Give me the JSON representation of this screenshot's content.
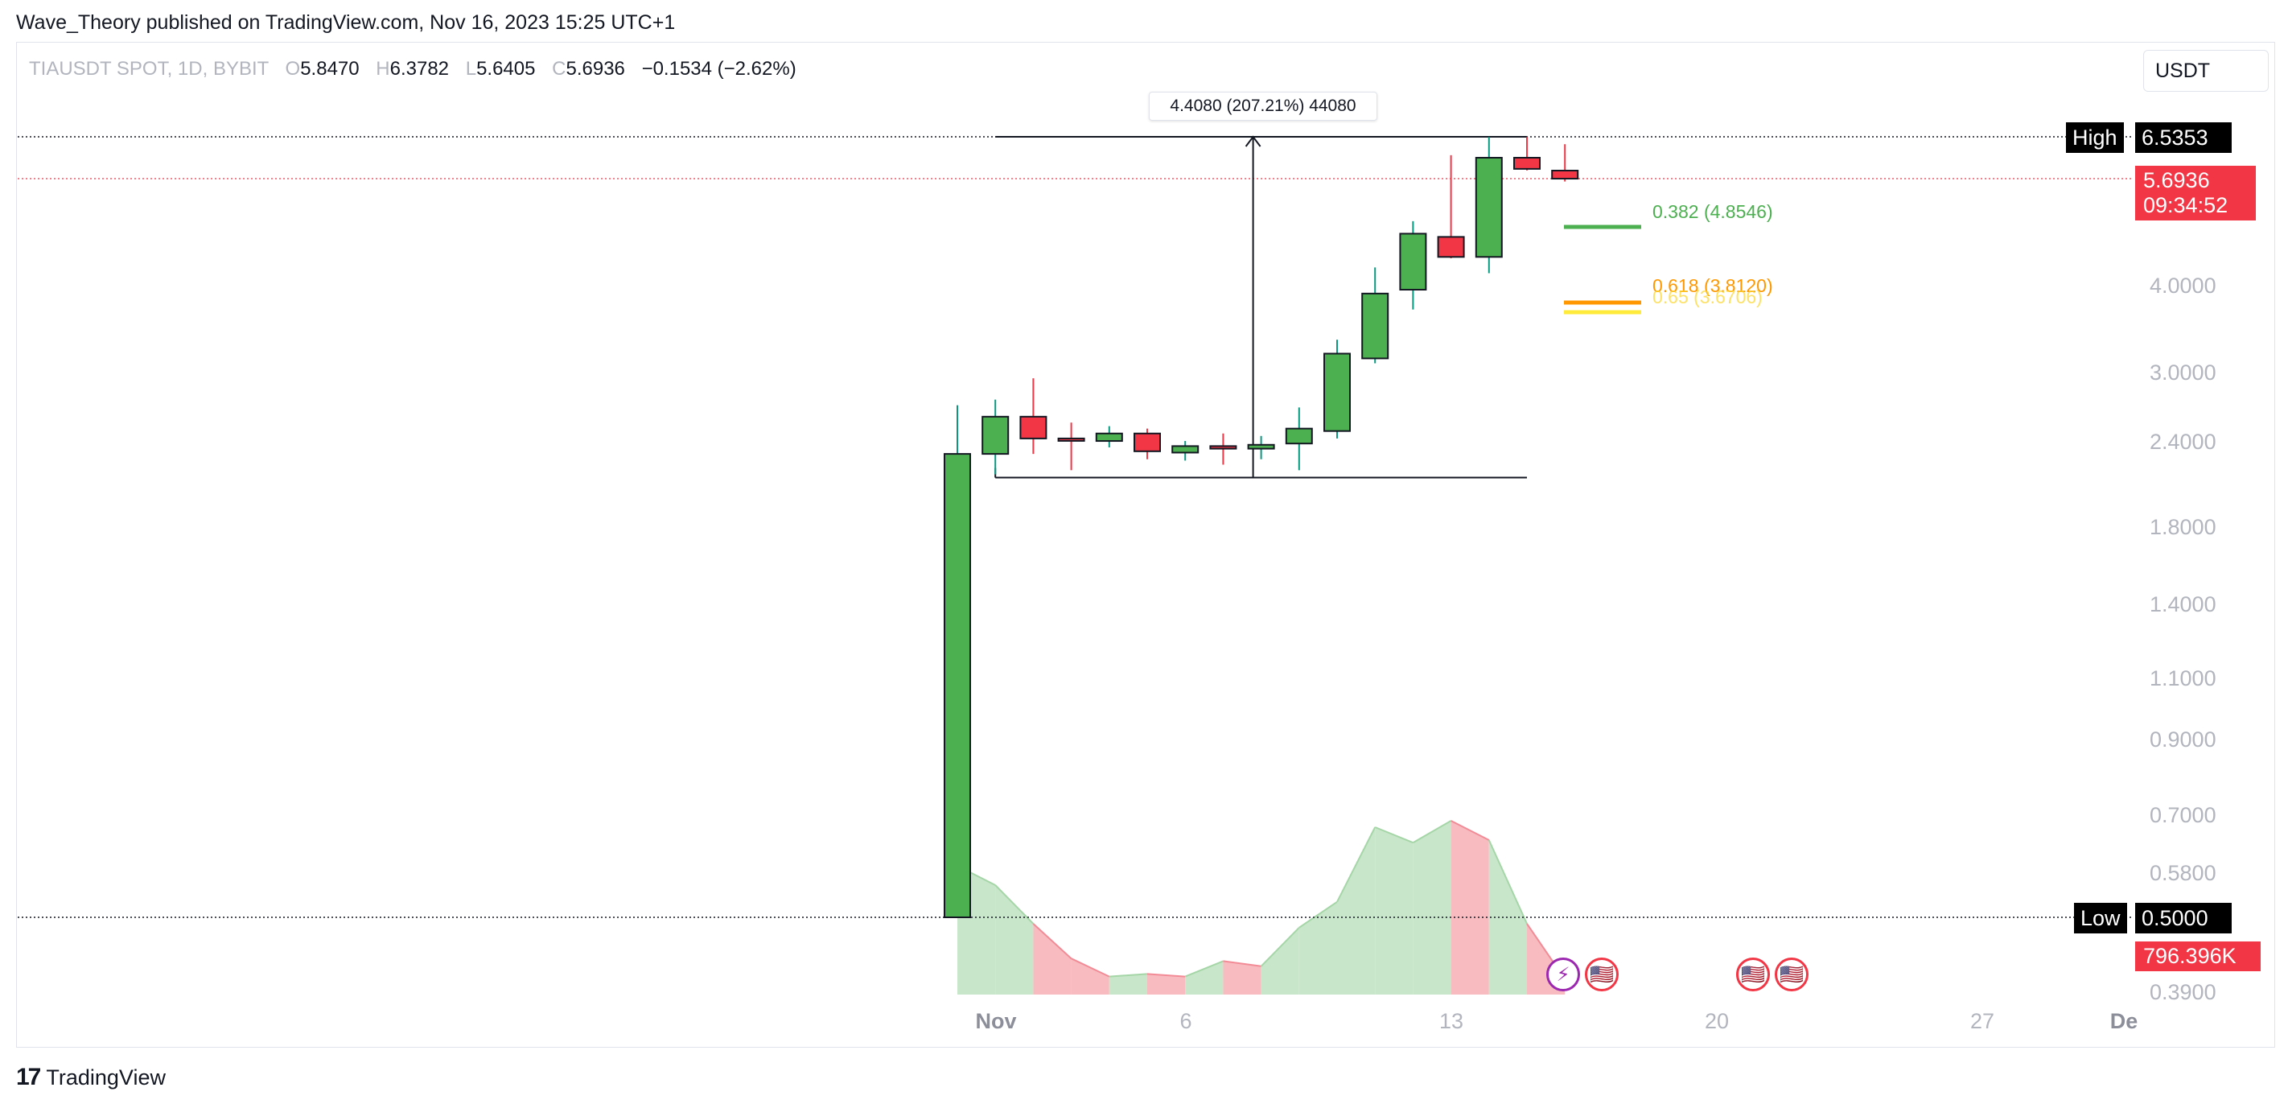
{
  "header": {
    "published_line": "Wave_Theory published on TradingView.com, Nov 16, 2023 15:25 UTC+1"
  },
  "legend": {
    "symbol": "TIAUSDT SPOT, 1D, BYBIT",
    "open_label": "O",
    "open": "5.8470",
    "high_label": "H",
    "high": "6.3782",
    "low_label": "L",
    "low": "5.6405",
    "close_label": "C",
    "close": "5.6936",
    "change": "−0.1534 (−2.62%)"
  },
  "currency": "USDT",
  "measure_tool": {
    "label": "4.4080 (207.21%) 44080"
  },
  "fib_levels": [
    {
      "label": "0.382 (4.8546)",
      "color": "#4caf50"
    },
    {
      "label": "0.618 (3.8120)",
      "color": "#ff9800"
    },
    {
      "label": "0.65 (3.6706)",
      "color": "#ffeb3b"
    }
  ],
  "high_marker": {
    "label": "High",
    "value": "6.5353"
  },
  "low_marker": {
    "label": "Low",
    "value": "0.5000"
  },
  "last_price": {
    "value": "5.6936",
    "countdown": "09:34:52"
  },
  "volume_tag": "796.396K",
  "price_axis": [
    "4.0000",
    "3.0000",
    "2.4000",
    "1.8000",
    "1.4000",
    "1.1000",
    "0.9000",
    "0.7000",
    "0.5800",
    "0.3900"
  ],
  "time_axis": [
    "Nov",
    "6",
    "13",
    "20",
    "27",
    "De"
  ],
  "footer": {
    "brand": "TradingView",
    "logo": "17"
  },
  "colors": {
    "up": "#4caf50",
    "down": "#f23645",
    "vol_up": "#c8e6c9",
    "vol_down": "#f8bbc0"
  },
  "chart_data": {
    "type": "candlestick",
    "title": "TIAUSDT SPOT, 1D, BYBIT",
    "scale": "log",
    "ylim": [
      0.39,
      7.2
    ],
    "x": [
      "Oct 31",
      "Nov 1",
      "Nov 2",
      "Nov 3",
      "Nov 4",
      "Nov 5",
      "Nov 6",
      "Nov 7",
      "Nov 8",
      "Nov 9",
      "Nov 10",
      "Nov 11",
      "Nov 12",
      "Nov 13",
      "Nov 14",
      "Nov 15",
      "Nov 16"
    ],
    "candles": [
      {
        "o": 0.5,
        "h": 2.7,
        "l": 0.5,
        "c": 2.3
      },
      {
        "o": 2.3,
        "h": 2.75,
        "l": 2.15,
        "c": 2.6
      },
      {
        "o": 2.6,
        "h": 2.95,
        "l": 2.3,
        "c": 2.42
      },
      {
        "o": 2.42,
        "h": 2.55,
        "l": 2.18,
        "c": 2.41
      },
      {
        "o": 2.4,
        "h": 2.52,
        "l": 2.35,
        "c": 2.46
      },
      {
        "o": 2.46,
        "h": 2.5,
        "l": 2.26,
        "c": 2.32
      },
      {
        "o": 2.31,
        "h": 2.4,
        "l": 2.25,
        "c": 2.36
      },
      {
        "o": 2.36,
        "h": 2.46,
        "l": 2.22,
        "c": 2.34
      },
      {
        "o": 2.34,
        "h": 2.44,
        "l": 2.26,
        "c": 2.37
      },
      {
        "o": 2.38,
        "h": 2.68,
        "l": 2.18,
        "c": 2.5
      },
      {
        "o": 2.48,
        "h": 3.35,
        "l": 2.42,
        "c": 3.2
      },
      {
        "o": 3.15,
        "h": 4.25,
        "l": 3.1,
        "c": 3.9
      },
      {
        "o": 3.95,
        "h": 4.95,
        "l": 3.7,
        "c": 4.75
      },
      {
        "o": 4.7,
        "h": 6.15,
        "l": 4.38,
        "c": 4.4
      },
      {
        "o": 4.4,
        "h": 6.53,
        "l": 4.17,
        "c": 6.1
      },
      {
        "o": 6.1,
        "h": 6.53,
        "l": 5.85,
        "c": 5.88
      },
      {
        "o": 5.847,
        "h": 6.378,
        "l": 5.6405,
        "c": 5.6936
      }
    ],
    "volume_relative": [
      1.0,
      0.85,
      0.55,
      0.28,
      0.14,
      0.16,
      0.14,
      0.26,
      0.22,
      0.52,
      0.72,
      1.3,
      1.18,
      1.35,
      1.2,
      0.55,
      0.12
    ],
    "measure": {
      "from_price": 2.1273,
      "to_price": 6.5353,
      "from_date": "Nov 1",
      "to_date": "Nov 15"
    }
  }
}
